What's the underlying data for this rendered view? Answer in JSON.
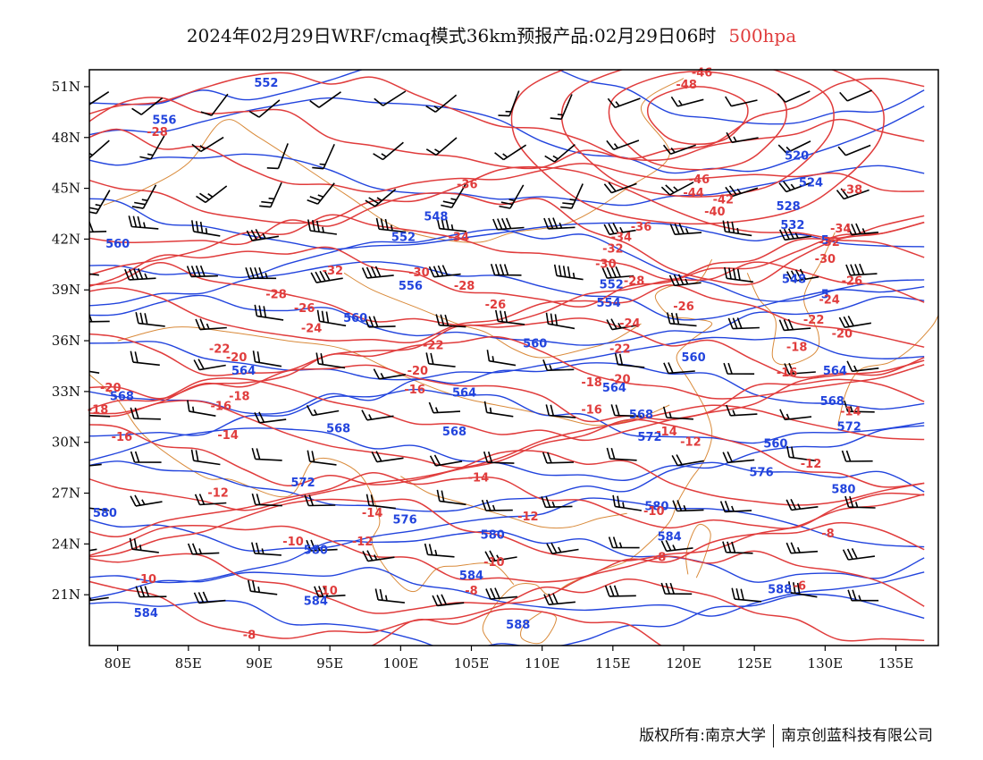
{
  "title": {
    "main": "2024年02月29日WRF/cmaq模式36km预报产品:02月29日06时",
    "level": "500hpa"
  },
  "axes": {
    "lat_labels": [
      "51N",
      "48N",
      "45N",
      "42N",
      "39N",
      "36N",
      "33N",
      "30N",
      "27N",
      "24N",
      "21N"
    ],
    "lat_values": [
      51,
      48,
      45,
      42,
      39,
      36,
      33,
      30,
      27,
      24,
      21
    ],
    "lon_labels": [
      "80E",
      "85E",
      "90E",
      "95E",
      "100E",
      "105E",
      "110E",
      "115E",
      "120E",
      "125E",
      "130E",
      "135E"
    ],
    "lon_values": [
      80,
      85,
      90,
      95,
      100,
      105,
      110,
      115,
      120,
      125,
      130,
      135
    ],
    "lon_range": [
      78,
      138
    ],
    "lat_range": [
      18,
      52
    ]
  },
  "colors": {
    "temperature": "#e03c3c",
    "height": "#2244dd",
    "coastline": "#d98a3a",
    "wind": "#000000"
  },
  "height_labels": [
    {
      "text": "552",
      "lon": 90.5,
      "lat": 51.0
    },
    {
      "text": "556",
      "lon": 83.3,
      "lat": 48.8
    },
    {
      "text": "548",
      "lon": 102.5,
      "lat": 43.1
    },
    {
      "text": "552",
      "lon": 100.2,
      "lat": 41.9
    },
    {
      "text": "556",
      "lon": 100.7,
      "lat": 39.0
    },
    {
      "text": "552",
      "lon": 114.9,
      "lat": 39.1
    },
    {
      "text": "560",
      "lon": 80.0,
      "lat": 41.5
    },
    {
      "text": "560",
      "lon": 96.8,
      "lat": 37.1
    },
    {
      "text": "560",
      "lon": 109.5,
      "lat": 35.6
    },
    {
      "text": "554",
      "lon": 114.7,
      "lat": 38.0
    },
    {
      "text": "560",
      "lon": 120.7,
      "lat": 34.8
    },
    {
      "text": "564",
      "lon": 88.9,
      "lat": 34.0
    },
    {
      "text": "564",
      "lon": 104.5,
      "lat": 32.7
    },
    {
      "text": "564",
      "lon": 130.7,
      "lat": 34.0
    },
    {
      "text": "564",
      "lon": 115.1,
      "lat": 33.0
    },
    {
      "text": "568",
      "lon": 80.3,
      "lat": 32.5
    },
    {
      "text": "568",
      "lon": 95.6,
      "lat": 30.6
    },
    {
      "text": "568",
      "lon": 103.8,
      "lat": 30.4
    },
    {
      "text": "568",
      "lon": 117.0,
      "lat": 31.4
    },
    {
      "text": "568",
      "lon": 130.5,
      "lat": 32.2
    },
    {
      "text": "572",
      "lon": 117.6,
      "lat": 30.1
    },
    {
      "text": "572",
      "lon": 131.7,
      "lat": 30.7
    },
    {
      "text": "572",
      "lon": 93.1,
      "lat": 27.4
    },
    {
      "text": "576",
      "lon": 125.5,
      "lat": 28.0
    },
    {
      "text": "576",
      "lon": 100.3,
      "lat": 25.2
    },
    {
      "text": "580",
      "lon": 79.1,
      "lat": 25.6
    },
    {
      "text": "580",
      "lon": 94.0,
      "lat": 23.4
    },
    {
      "text": "580",
      "lon": 106.5,
      "lat": 24.3
    },
    {
      "text": "580",
      "lon": 118.1,
      "lat": 26.0
    },
    {
      "text": "580",
      "lon": 131.3,
      "lat": 27.0
    },
    {
      "text": "584",
      "lon": 82.0,
      "lat": 19.7
    },
    {
      "text": "584",
      "lon": 94.0,
      "lat": 20.4
    },
    {
      "text": "584",
      "lon": 105.0,
      "lat": 21.9
    },
    {
      "text": "584",
      "lon": 119.0,
      "lat": 24.2
    },
    {
      "text": "588",
      "lon": 126.8,
      "lat": 21.1
    },
    {
      "text": "588",
      "lon": 108.3,
      "lat": 19.0
    },
    {
      "text": "520",
      "lon": 128.0,
      "lat": 46.7
    },
    {
      "text": "524",
      "lon": 129.0,
      "lat": 45.1
    },
    {
      "text": "528",
      "lon": 127.4,
      "lat": 43.7
    },
    {
      "text": "532",
      "lon": 127.7,
      "lat": 42.6
    },
    {
      "text": "548",
      "lon": 127.8,
      "lat": 39.4
    },
    {
      "text": "5",
      "lon": 130.0,
      "lat": 41.7
    },
    {
      "text": "5",
      "lon": 130.0,
      "lat": 38.5
    },
    {
      "text": "560",
      "lon": 126.5,
      "lat": 29.7
    }
  ],
  "temperature_labels": [
    {
      "text": "-48",
      "lon": 120.2,
      "lat": 50.9
    },
    {
      "text": "-46",
      "lon": 121.3,
      "lat": 51.6
    },
    {
      "text": "-46",
      "lon": 121.1,
      "lat": 45.3
    },
    {
      "text": "-44",
      "lon": 120.7,
      "lat": 44.5
    },
    {
      "text": "-42",
      "lon": 122.8,
      "lat": 44.1
    },
    {
      "text": "-40",
      "lon": 122.2,
      "lat": 43.4
    },
    {
      "text": "-38",
      "lon": 131.9,
      "lat": 44.7
    },
    {
      "text": "-36",
      "lon": 104.7,
      "lat": 45.0
    },
    {
      "text": "-36",
      "lon": 117.0,
      "lat": 42.5
    },
    {
      "text": "-34",
      "lon": 104.1,
      "lat": 41.9
    },
    {
      "text": "-34",
      "lon": 115.6,
      "lat": 41.9
    },
    {
      "text": "-34",
      "lon": 131.1,
      "lat": 42.4
    },
    {
      "text": "-32",
      "lon": 115.0,
      "lat": 41.2
    },
    {
      "text": "-32",
      "lon": 95.2,
      "lat": 39.9
    },
    {
      "text": "-32",
      "lon": 130.3,
      "lat": 41.6
    },
    {
      "text": "-30",
      "lon": 101.3,
      "lat": 39.8
    },
    {
      "text": "-30",
      "lon": 114.5,
      "lat": 40.3
    },
    {
      "text": "-30",
      "lon": 130.0,
      "lat": 40.6
    },
    {
      "text": "-28",
      "lon": 82.8,
      "lat": 48.1
    },
    {
      "text": "-28",
      "lon": 104.5,
      "lat": 39.0
    },
    {
      "text": "-28",
      "lon": 116.5,
      "lat": 39.3
    },
    {
      "text": "-28",
      "lon": 91.2,
      "lat": 38.5
    },
    {
      "text": "-26",
      "lon": 106.7,
      "lat": 37.9
    },
    {
      "text": "-26",
      "lon": 120.0,
      "lat": 37.8
    },
    {
      "text": "-26",
      "lon": 131.9,
      "lat": 39.3
    },
    {
      "text": "-26",
      "lon": 93.2,
      "lat": 37.7
    },
    {
      "text": "-24",
      "lon": 93.7,
      "lat": 36.5
    },
    {
      "text": "-24",
      "lon": 116.2,
      "lat": 36.8
    },
    {
      "text": "-24",
      "lon": 130.3,
      "lat": 38.2
    },
    {
      "text": "-22",
      "lon": 87.2,
      "lat": 35.3
    },
    {
      "text": "-22",
      "lon": 102.3,
      "lat": 35.5
    },
    {
      "text": "-22",
      "lon": 115.5,
      "lat": 35.3
    },
    {
      "text": "-22",
      "lon": 129.2,
      "lat": 37.0
    },
    {
      "text": "-20",
      "lon": 79.5,
      "lat": 33.0
    },
    {
      "text": "-20",
      "lon": 88.4,
      "lat": 34.8
    },
    {
      "text": "-20",
      "lon": 101.2,
      "lat": 34.0
    },
    {
      "text": "-20",
      "lon": 115.5,
      "lat": 33.5
    },
    {
      "text": "-20",
      "lon": 131.2,
      "lat": 36.2
    },
    {
      "text": "-18",
      "lon": 78.6,
      "lat": 31.7
    },
    {
      "text": "-18",
      "lon": 88.6,
      "lat": 32.5
    },
    {
      "text": "-18",
      "lon": 113.5,
      "lat": 33.3
    },
    {
      "text": "-18",
      "lon": 128.0,
      "lat": 35.4
    },
    {
      "text": "-16",
      "lon": 80.3,
      "lat": 30.1
    },
    {
      "text": "-16",
      "lon": 87.3,
      "lat": 31.9
    },
    {
      "text": "-16",
      "lon": 101.0,
      "lat": 32.9
    },
    {
      "text": "-16",
      "lon": 113.5,
      "lat": 31.7
    },
    {
      "text": "-16",
      "lon": 127.3,
      "lat": 33.9
    },
    {
      "text": "-14",
      "lon": 87.8,
      "lat": 30.2
    },
    {
      "text": "-14",
      "lon": 105.5,
      "lat": 27.7
    },
    {
      "text": "-14",
      "lon": 118.8,
      "lat": 30.4
    },
    {
      "text": "-14",
      "lon": 131.8,
      "lat": 31.6
    },
    {
      "text": "-14",
      "lon": 98.0,
      "lat": 25.6
    },
    {
      "text": "-12",
      "lon": 87.1,
      "lat": 26.8
    },
    {
      "text": "-12",
      "lon": 97.3,
      "lat": 23.9
    },
    {
      "text": "-12",
      "lon": 109.0,
      "lat": 25.4
    },
    {
      "text": "-12",
      "lon": 120.5,
      "lat": 29.8
    },
    {
      "text": "-12",
      "lon": 129.0,
      "lat": 28.5
    },
    {
      "text": "-10",
      "lon": 82.0,
      "lat": 21.7
    },
    {
      "text": "-10",
      "lon": 92.4,
      "lat": 23.9
    },
    {
      "text": "-10",
      "lon": 94.8,
      "lat": 21.0
    },
    {
      "text": "-10",
      "lon": 106.6,
      "lat": 22.7
    },
    {
      "text": "-10",
      "lon": 117.9,
      "lat": 25.7
    },
    {
      "text": "-8",
      "lon": 89.3,
      "lat": 18.4
    },
    {
      "text": "-8",
      "lon": 105.0,
      "lat": 21.0
    },
    {
      "text": "-8",
      "lon": 118.3,
      "lat": 23.0
    },
    {
      "text": "-8",
      "lon": 130.2,
      "lat": 24.4
    },
    {
      "text": "-6",
      "lon": 128.2,
      "lat": 21.3
    }
  ],
  "footer": {
    "left": "版权所有:南京大学",
    "right": "南京创蓝科技有限公司"
  }
}
